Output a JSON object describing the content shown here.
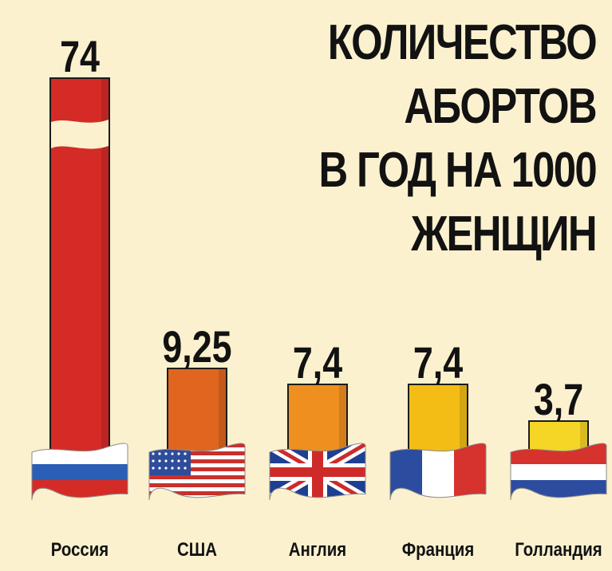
{
  "chart_data": {
    "type": "bar",
    "title_lines": [
      "КОЛИЧЕСТВО",
      "АБОРТОВ",
      "В ГОД НА 1000",
      "ЖЕНЩИН"
    ],
    "categories": [
      "Россия",
      "США",
      "Англия",
      "Франция",
      "Голландия"
    ],
    "values": [
      74,
      9.25,
      7.4,
      7.4,
      3.7
    ],
    "value_labels": [
      "74",
      "9,25",
      "7,4",
      "7,4",
      "3,7"
    ],
    "bar_colors": [
      "#d52b27",
      "#e0661f",
      "#ef8f1f",
      "#f3bd16",
      "#f5d526"
    ],
    "flags": [
      "russia-flag",
      "usa-flag",
      "uk-flag",
      "france-flag",
      "netherlands-flag"
    ],
    "ylim": [
      0,
      74
    ],
    "grid": false,
    "legend": "none"
  },
  "colors": {
    "background": "#fbf1cf",
    "text": "#121212"
  }
}
